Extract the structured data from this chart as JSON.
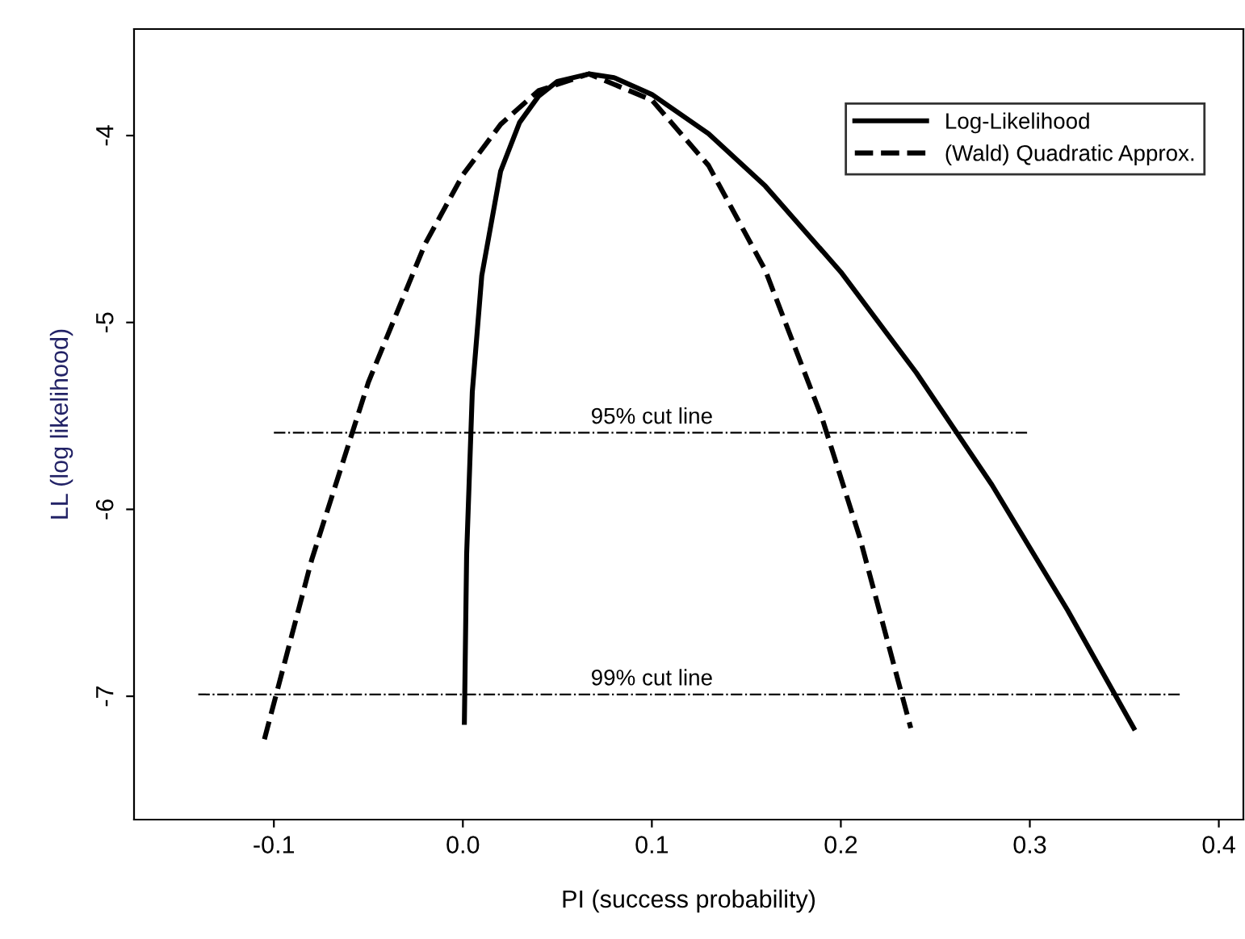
{
  "chart_data": {
    "type": "line",
    "xlabel": "PI (success probability)",
    "ylabel": "LL (log likelihood)",
    "series": [
      {
        "name": "Log-Likelihood",
        "color": "#000000",
        "line_style": "solid",
        "x": [
          0.0008,
          0.002,
          0.005,
          0.01,
          0.02,
          0.03,
          0.04,
          0.05,
          0.0667,
          0.08,
          0.1,
          0.13,
          0.16,
          0.2,
          0.24,
          0.28,
          0.32,
          0.355
        ],
        "values": [
          -7.14,
          -6.24,
          -5.37,
          -4.75,
          -4.19,
          -3.93,
          -3.79,
          -3.71,
          -3.67,
          -3.69,
          -3.78,
          -3.99,
          -4.27,
          -4.73,
          -5.27,
          -5.87,
          -6.54,
          -7.17
        ]
      },
      {
        "name": "(Wald) Quadratic Approx.",
        "color": "#000000",
        "line_style": "dashed",
        "x": [
          -0.105,
          -0.08,
          -0.05,
          -0.02,
          0.0,
          0.02,
          0.04,
          0.0667,
          0.1,
          0.13,
          0.16,
          0.19,
          0.21,
          0.237
        ],
        "values": [
          -7.23,
          -6.27,
          -5.32,
          -4.58,
          -4.21,
          -3.94,
          -3.76,
          -3.67,
          -3.81,
          -4.16,
          -4.72,
          -5.51,
          -6.15,
          -7.17
        ]
      },
      {
        "color": "#000000",
        "line_style": "dashdot",
        "x": [
          -0.1,
          0.3
        ],
        "values": [
          -5.59,
          -5.59
        ]
      },
      {
        "color": "#000000",
        "line_style": "dashdot",
        "x": [
          -0.14,
          0.38
        ],
        "values": [
          -6.99,
          -6.99
        ]
      }
    ],
    "annotations": [
      {
        "text": "95% cut line",
        "x": 0.1,
        "y": -5.59
      },
      {
        "text": "99% cut line",
        "x": 0.1,
        "y": -6.99
      }
    ],
    "xlim": [
      -0.174,
      0.413
    ],
    "ylim": [
      -7.66,
      -3.43
    ],
    "xticks": [
      -0.1,
      {
        "value": 0.0,
        "label": "0.0"
      },
      0.1,
      0.2,
      0.3,
      0.4
    ],
    "yticks": [
      -7,
      -6,
      -5,
      -4
    ],
    "legend": "top right",
    "grid": false,
    "marker": "none"
  }
}
